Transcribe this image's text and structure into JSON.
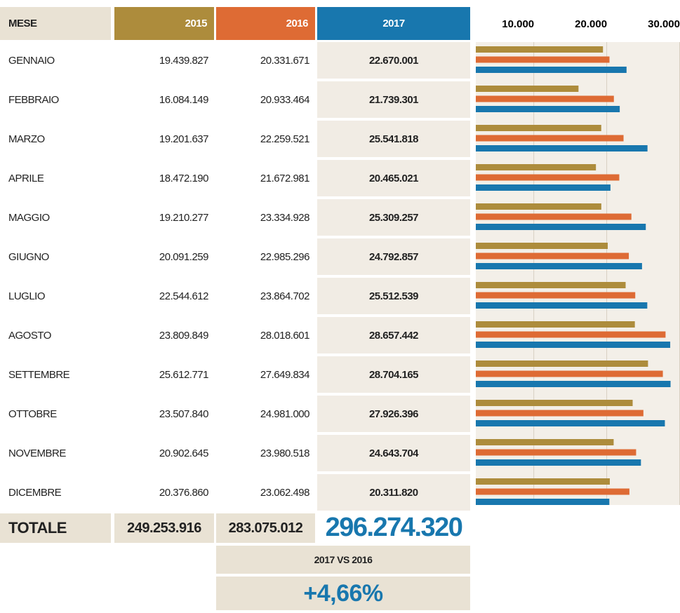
{
  "table": {
    "header": "MESE",
    "rows": [
      {
        "month": "GENNAIO",
        "cells": [
          "19.439.827",
          "20.331.671",
          "22.670.001"
        ]
      },
      {
        "month": "FEBBRAIO",
        "cells": [
          "16.084.149",
          "20.933.464",
          "21.739.301"
        ]
      },
      {
        "month": "MARZO",
        "cells": [
          "19.201.637",
          "22.259.521",
          "25.541.818"
        ]
      },
      {
        "month": "APRILE",
        "cells": [
          "18.472.190",
          "21.672.981",
          "20.465.021"
        ]
      },
      {
        "month": "MAGGIO",
        "cells": [
          "19.210.277",
          "23.334.928",
          "25.309.257"
        ]
      },
      {
        "month": "GIUGNO",
        "cells": [
          "20.091.259",
          "22.985.296",
          "24.792.857"
        ]
      },
      {
        "month": "LUGLIO",
        "cells": [
          "22.544.612",
          "23.864.702",
          "25.512.539"
        ]
      },
      {
        "month": "AGOSTO",
        "cells": [
          "23.809.849",
          "28.018.601",
          "28.657.442"
        ]
      },
      {
        "month": "SETTEMBRE",
        "cells": [
          "25.612.771",
          "27.649.834",
          "28.704.165"
        ]
      },
      {
        "month": "OTTOBRE",
        "cells": [
          "23.507.840",
          "24.981.000",
          "27.926.396"
        ]
      },
      {
        "month": "NOVEMBRE",
        "cells": [
          "20.902.645",
          "23.980.518",
          "24.643.704"
        ]
      },
      {
        "month": "DICEMBRE",
        "cells": [
          "20.376.860",
          "23.062.498",
          "20.311.820"
        ]
      }
    ],
    "total": {
      "label": "TOTALE",
      "cells": [
        "249.253.916",
        "283.075.012",
        "296.274.320"
      ]
    }
  },
  "comparison": {
    "label": "2017 VS 2016",
    "value": "+4,66%"
  },
  "chart_data": {
    "type": "bar",
    "orientation": "horizontal",
    "grid": true,
    "xlim": [
      2000,
      30000
    ],
    "xticks": [
      {
        "value": 10000,
        "label": "10.000"
      },
      {
        "value": 20000,
        "label": "20.000"
      },
      {
        "value": 30000,
        "label": "30.000"
      }
    ],
    "series": [
      {
        "name": "2015",
        "color": "#ad8c3c",
        "values": [
          19439.827,
          16084.149,
          19201.637,
          18472.19,
          19210.277,
          20091.259,
          22544.612,
          23809.849,
          25612.771,
          23507.84,
          20902.645,
          20376.86
        ]
      },
      {
        "name": "2016",
        "color": "#de6b34",
        "values": [
          20331.671,
          20933.464,
          22259.521,
          21672.981,
          23334.928,
          22985.296,
          23864.702,
          28018.601,
          27649.834,
          24981.0,
          23980.518,
          23062.498
        ]
      },
      {
        "name": "2017",
        "color": "#1877ae",
        "values": [
          22670.001,
          21739.301,
          25541.818,
          20465.021,
          25309.257,
          24792.857,
          25512.539,
          28657.442,
          28704.165,
          27926.396,
          24643.704,
          20311.82
        ]
      }
    ]
  }
}
